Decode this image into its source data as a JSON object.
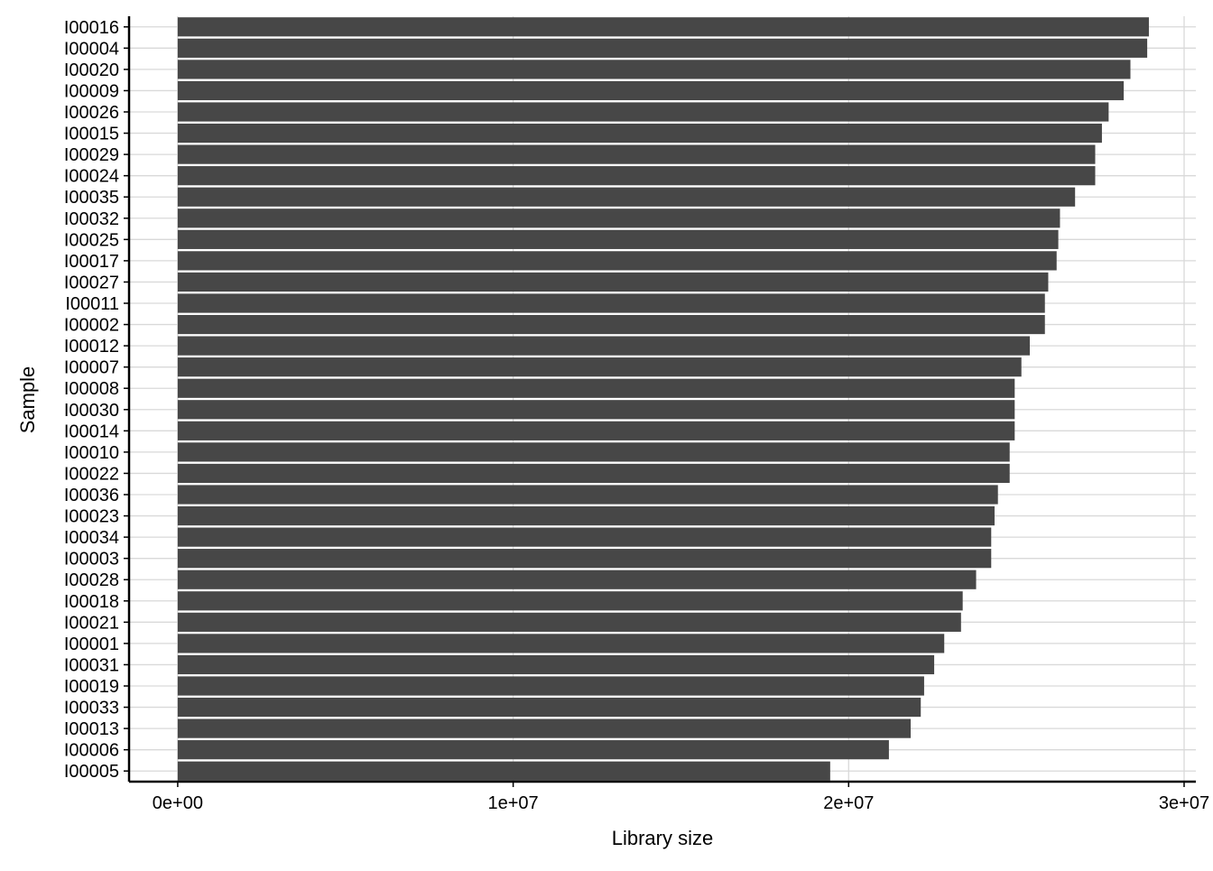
{
  "chart_data": {
    "type": "bar",
    "orientation": "horizontal",
    "title": "",
    "xlabel": "Library size",
    "ylabel": "Sample",
    "xlim": [
      -1450000,
      30350000
    ],
    "x_ticks": [
      0,
      10000000,
      20000000,
      30000000
    ],
    "x_tick_labels": [
      "0e+00",
      "1e+07",
      "2e+07",
      "3e+07"
    ],
    "grid": true,
    "legend": "none",
    "bar_color": "#474747",
    "grid_color": "#d9d9d9",
    "categories": [
      "I00016",
      "I00004",
      "I00020",
      "I00009",
      "I00026",
      "I00015",
      "I00029",
      "I00024",
      "I00035",
      "I00032",
      "I00025",
      "I00017",
      "I00027",
      "I00011",
      "I00002",
      "I00012",
      "I00007",
      "I00008",
      "I00030",
      "I00014",
      "I00010",
      "I00022",
      "I00036",
      "I00023",
      "I00034",
      "I00003",
      "I00028",
      "I00018",
      "I00021",
      "I00001",
      "I00031",
      "I00019",
      "I00033",
      "I00013",
      "I00006",
      "I00005"
    ],
    "values": [
      28950000,
      28900000,
      28400000,
      28200000,
      27750000,
      27550000,
      27350000,
      27350000,
      26750000,
      26300000,
      26250000,
      26200000,
      25950000,
      25850000,
      25850000,
      25400000,
      25150000,
      24950000,
      24950000,
      24950000,
      24800000,
      24800000,
      24450000,
      24350000,
      24250000,
      24250000,
      23800000,
      23400000,
      23350000,
      22850000,
      22550000,
      22250000,
      22150000,
      21850000,
      21200000,
      19450000
    ]
  }
}
